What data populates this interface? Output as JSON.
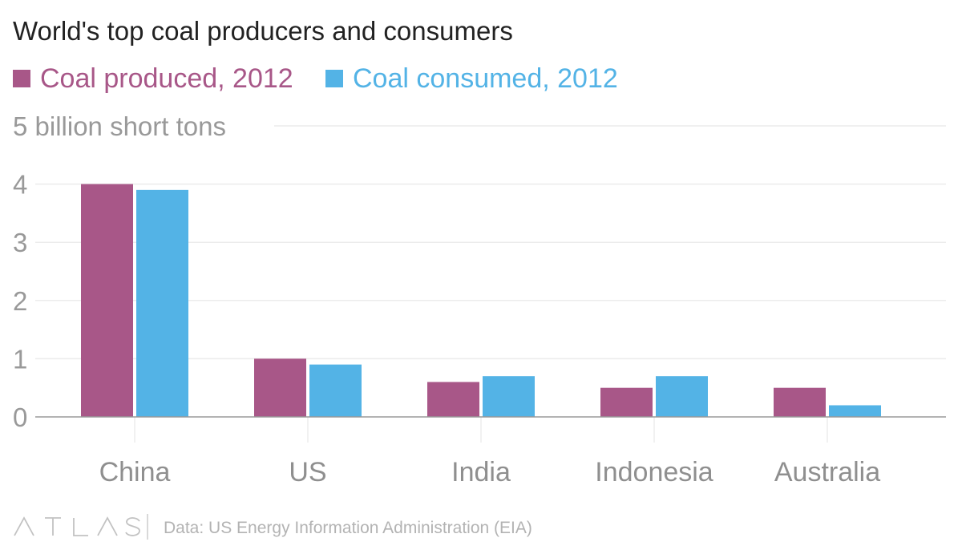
{
  "chart_data": {
    "type": "bar",
    "title": "World's top coal producers and consumers",
    "ylabel": "billion short tons",
    "ylim": [
      0,
      5
    ],
    "yticks": [
      0,
      1,
      2,
      3,
      4,
      5
    ],
    "top_tick_label": "5 billion short tons",
    "categories": [
      "China",
      "US",
      "India",
      "Indonesia",
      "Australia"
    ],
    "series": [
      {
        "name": "Coal produced, 2012",
        "color": "#a85788",
        "values": [
          4.0,
          1.0,
          0.6,
          0.5,
          0.5
        ]
      },
      {
        "name": "Coal consumed, 2012",
        "color": "#53b3e6",
        "values": [
          3.9,
          0.9,
          0.7,
          0.7,
          0.2
        ]
      }
    ],
    "grid": true,
    "legend": "top-left"
  },
  "footer": {
    "logo": "ATLAS",
    "source": "Data: US Energy Information Administration (EIA)"
  }
}
